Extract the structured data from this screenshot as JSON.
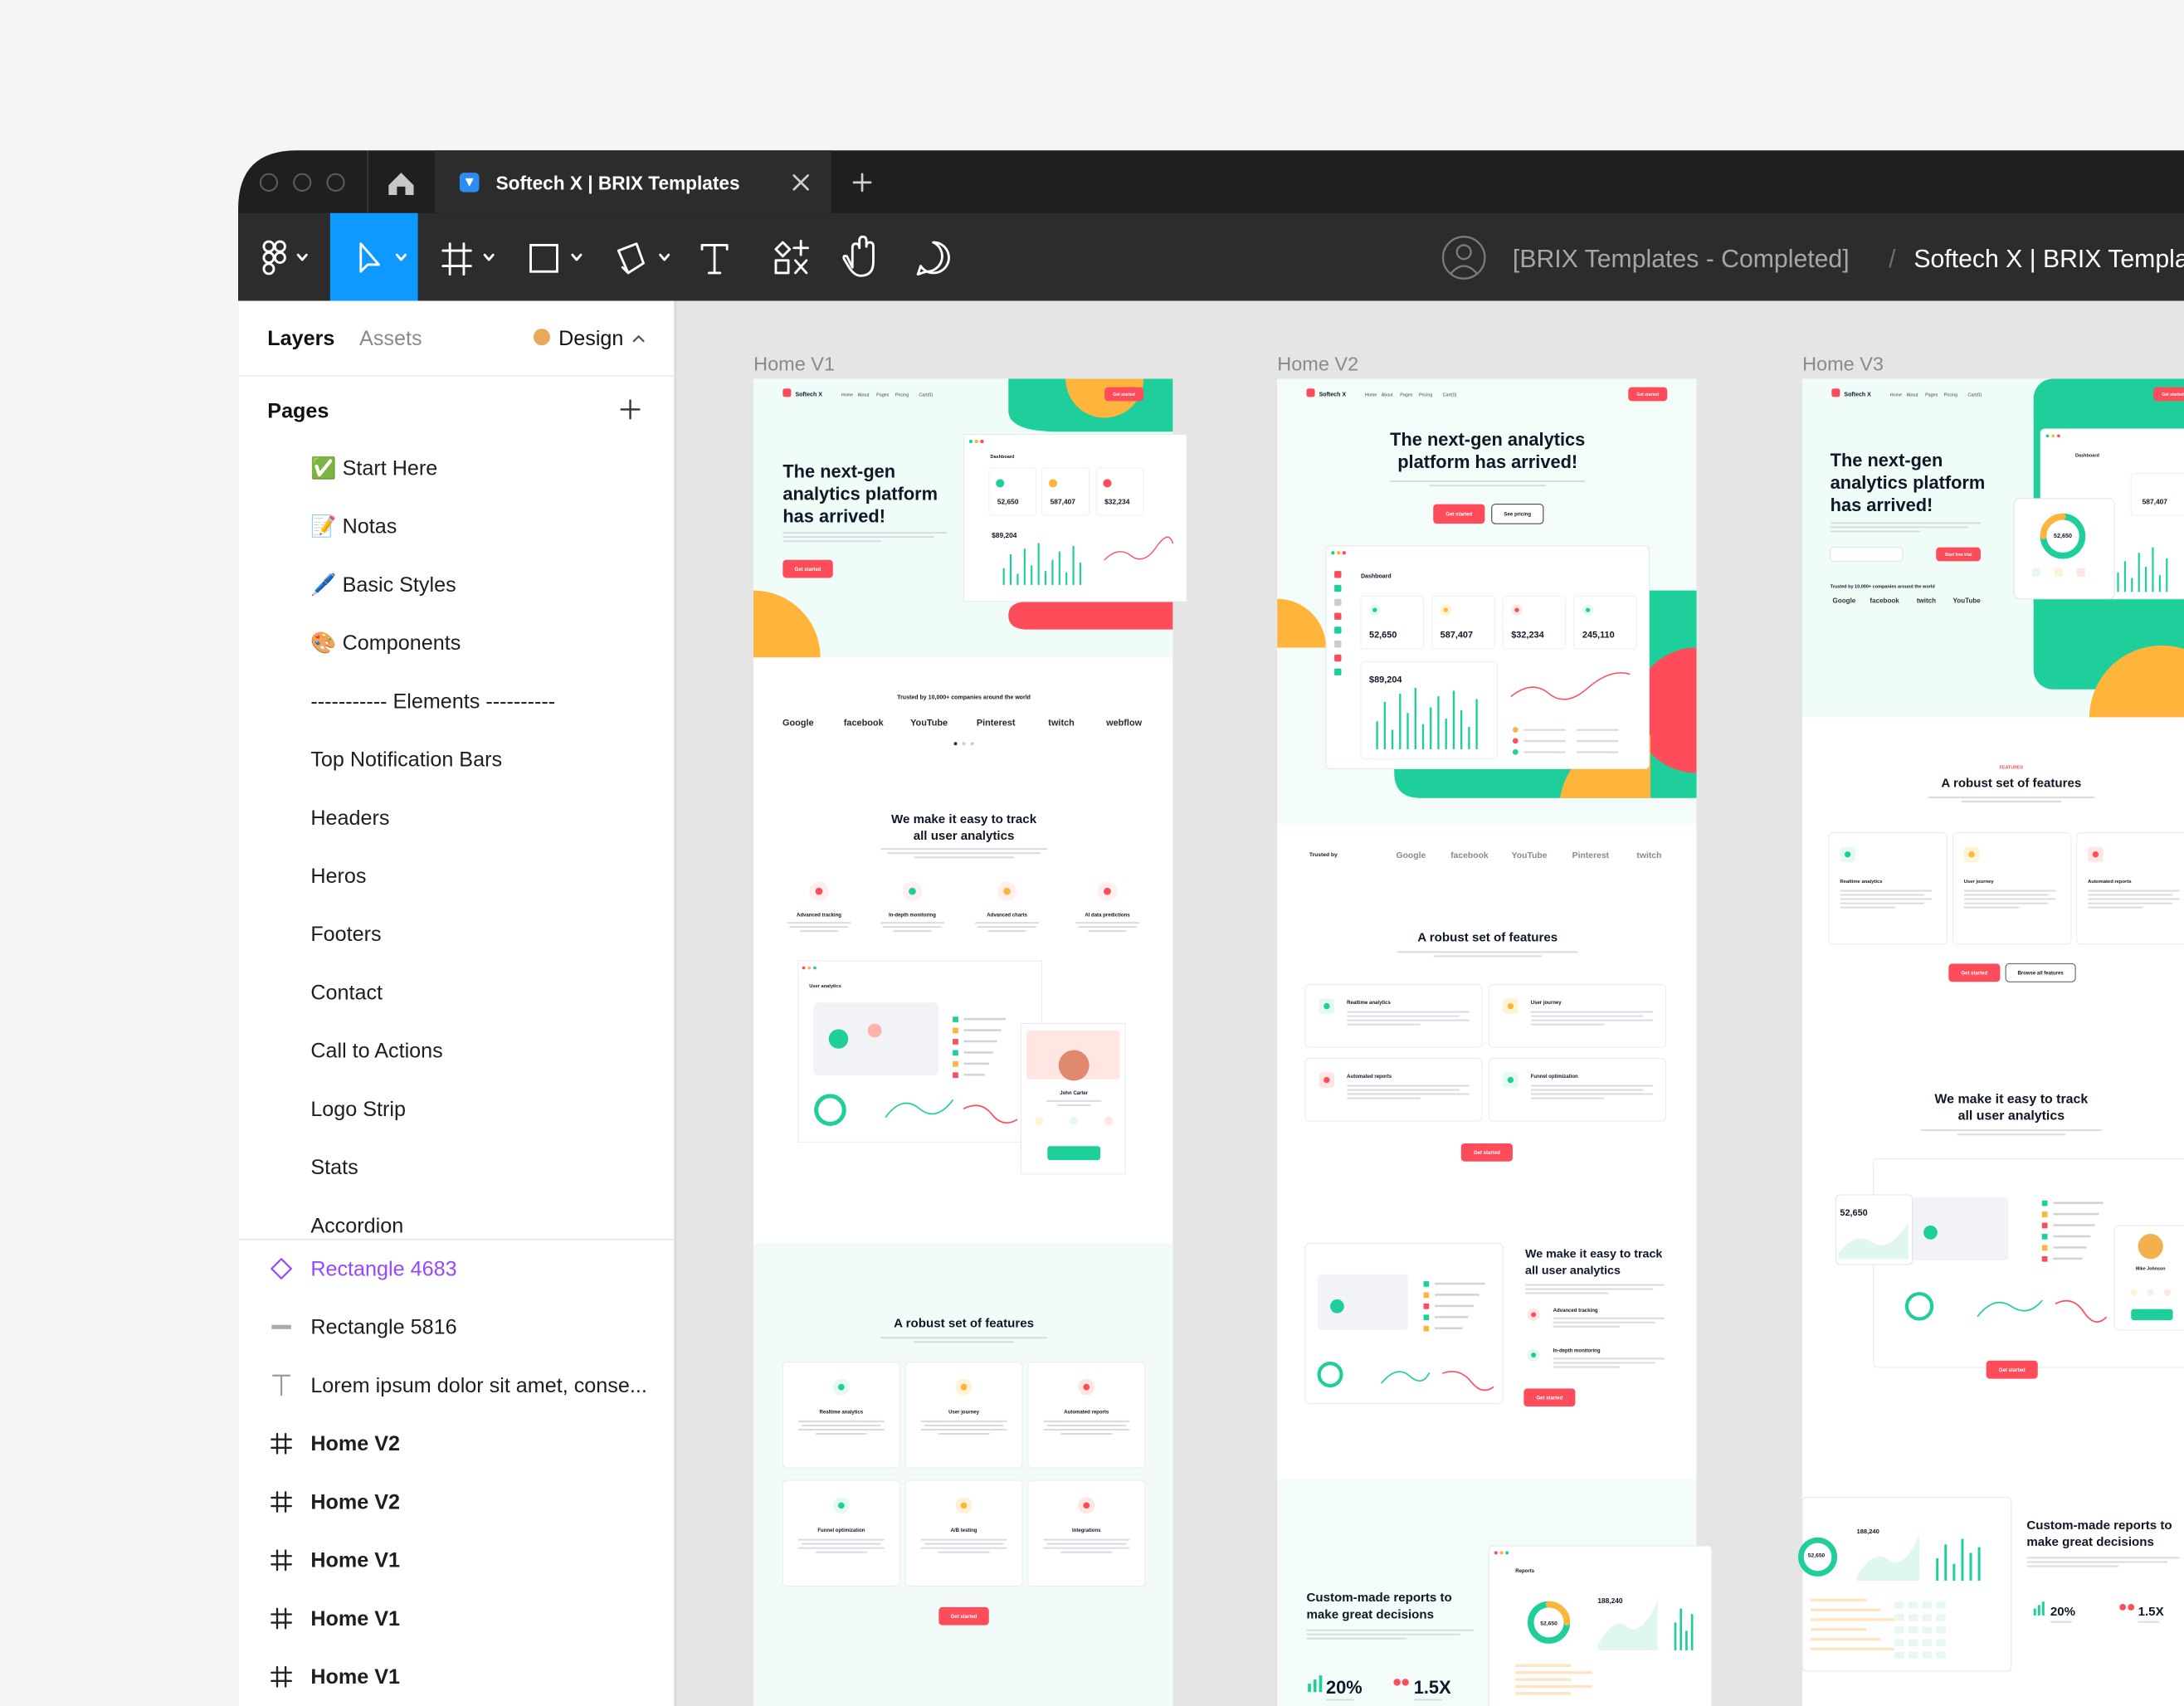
{
  "tab": {
    "title": "Softech X | BRIX Templates"
  },
  "toolbar": {
    "project": "[BRIX Templates - Completed]",
    "separator": "/",
    "file": "Softech X | BRIX Templates"
  },
  "panel": {
    "tabs": [
      "Layers",
      "Assets"
    ],
    "mode": "Design",
    "pages_title": "Pages",
    "pages": [
      "✅ Start Here",
      "📝 Notas",
      "🖊️ Basic Styles",
      "🎨 Components",
      "----------- Elements ----------",
      "Top Notification Bars",
      "Headers",
      "Heros",
      "Footers",
      "Contact",
      "Call to Actions",
      "Logo Strip",
      "Stats",
      "Accordion"
    ],
    "layers": [
      "Rectangle 4683",
      "Rectangle 5816",
      "Lorem ipsum dolor sit amet, conse...",
      "Home V2",
      "Home V2",
      "Home V1",
      "Home V1",
      "Home V1"
    ]
  },
  "canvas": {
    "frames": [
      {
        "label": "Home V1",
        "nav": {
          "brand": "Softech X",
          "links": [
            "Home",
            "About",
            "Pages",
            "Pricing",
            "Cart(0)"
          ],
          "cta": "Get started"
        },
        "hero": {
          "title": "The next-gen analytics platform has arrived!",
          "cta": "Get started"
        },
        "dashboard": {
          "title": "Dashboard",
          "values": [
            "52,650",
            "587,407",
            "$32,234",
            "$89,204"
          ]
        },
        "trust": {
          "caption": "Trusted by 10,000+ companies around the world",
          "logos": [
            "Google",
            "facebook",
            "YouTube",
            "Pinterest",
            "twitch",
            "webflow"
          ]
        },
        "track": {
          "title": "We make it easy to track all user analytics",
          "features": [
            "Advanced tracking",
            "In-depth monitoring",
            "Advanced charts",
            "AI data predictions"
          ],
          "panel_title": "User analytics",
          "person": "John Carter"
        },
        "features": {
          "title": "A robust set of features",
          "cards": [
            "Realtime analytics",
            "User journey",
            "Automated reports",
            "Funnel optimization",
            "A/B testing",
            "Integrations"
          ],
          "cta": "Get started"
        }
      },
      {
        "label": "Home V2",
        "nav": {
          "brand": "Softech X",
          "links": [
            "Home",
            "About",
            "Pages",
            "Pricing",
            "Cart(0)"
          ],
          "cta": "Get started"
        },
        "hero": {
          "title": "The next-gen analytics platform has arrived!",
          "cta": "Get started",
          "secondary": "See pricing"
        },
        "dashboard": {
          "title": "Dashboard",
          "values": [
            "52,650",
            "587,407",
            "$32,234",
            "245,110",
            "$89,204"
          ]
        },
        "trust": {
          "caption": "Trusted by",
          "logos": [
            "Google",
            "facebook",
            "YouTube",
            "Pinterest",
            "twitch"
          ]
        },
        "features": {
          "title": "A robust set of features",
          "cards": [
            "Realtime analytics",
            "User journey",
            "Automated reports",
            "Funnel optimization"
          ],
          "cta": "Get started"
        },
        "track": {
          "title": "We make it easy to track all user analytics",
          "features": [
            "Advanced tracking",
            "In-depth monitoring"
          ],
          "cta": "Get started"
        },
        "reports": {
          "title": "Custom-made reports to make great decisions",
          "stats": [
            "20%",
            "1.5X"
          ],
          "card_title": "Reports",
          "values": [
            "52,650",
            "188,240"
          ]
        }
      },
      {
        "label": "Home V3",
        "nav": {
          "brand": "Softech X",
          "links": [
            "Home",
            "About",
            "Pages",
            "Pricing",
            "Cart(0)"
          ],
          "cta": "Get started"
        },
        "hero": {
          "title": "The next-gen analytics platform has arrived!",
          "cta": "Start free trial"
        },
        "trust": {
          "caption": "Trusted by 10,000+ companies around the world",
          "logos": [
            "Google",
            "facebook",
            "twitch",
            "YouTube"
          ]
        },
        "dashboard": {
          "title": "Dashboard",
          "values": [
            "52,650",
            "587,407"
          ]
        },
        "features": {
          "eyebrow": "FEATURES",
          "title": "A robust set of features",
          "cards": [
            "Realtime analytics",
            "User journey",
            "Automated reports"
          ],
          "cta": "Get started",
          "secondary": "Browse all features"
        },
        "track": {
          "title": "We make it easy to track all user analytics",
          "value": "52,650",
          "person": "Mike Johnson",
          "cta": "Get started"
        },
        "reports": {
          "title": "Custom-made reports to make great decisions",
          "stats": [
            "20%",
            "1.5X"
          ],
          "values": [
            "52,650",
            "188,240"
          ]
        }
      }
    ]
  }
}
